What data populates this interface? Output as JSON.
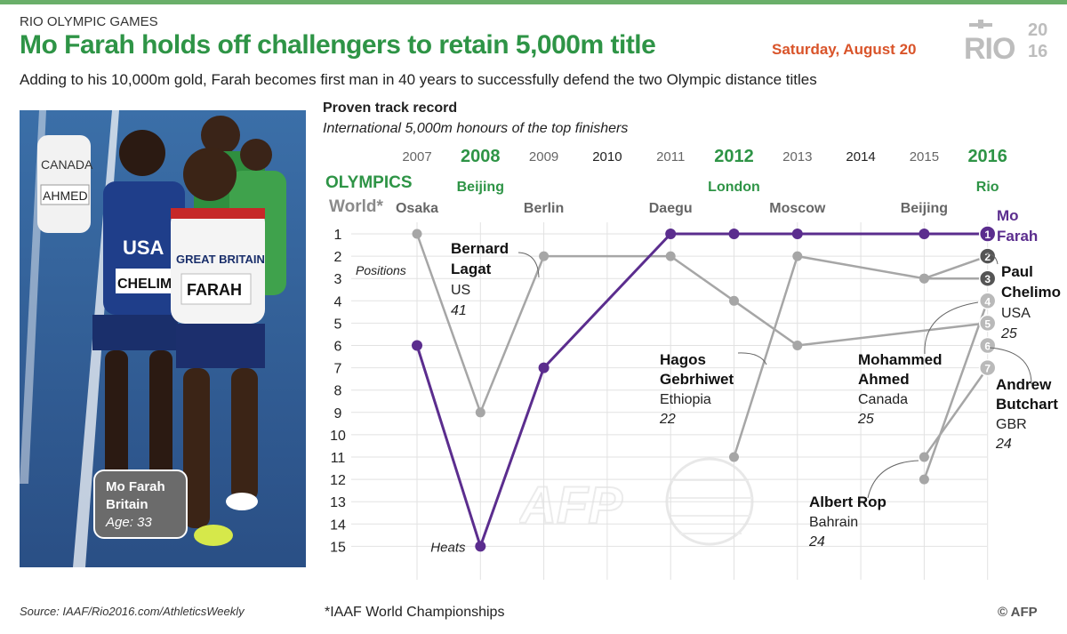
{
  "header": {
    "kicker": "RIO OLYMPIC GAMES",
    "headline": "Mo Farah holds off challengers to retain 5,000m title",
    "date": "Saturday, August 20",
    "logo_text": "RIO",
    "logo_year_top": "20",
    "logo_year_bottom": "16",
    "subhead": "Adding to his 10,000m gold, Farah becomes first man in 40 years to successfully defend the two Olympic distance titles"
  },
  "photo": {
    "caption_name": "Mo Farah",
    "caption_country": "Britain",
    "caption_age": "Age: 33",
    "bibs": [
      "CANADA",
      "AHMED",
      "USA",
      "CHELIM",
      "GREAT BRITAIN",
      "FARAH"
    ]
  },
  "colors": {
    "accent_green": "#2e9446",
    "farah_purple": "#5b2d8e",
    "grey_line": "#a6a6a6",
    "date_red": "#d9542a"
  },
  "footer": {
    "source": "Source: IAAF/Rio2016.com/AthleticsWeekly",
    "footnote": "*IAAF World Championships",
    "credit": "© AFP",
    "watermark": "AFP"
  },
  "chart_data": {
    "type": "line",
    "title": "Proven track record",
    "subtitle": "International 5,000m honours of the top finishers",
    "olympics_label": "OLYMPICS",
    "world_label": "World*",
    "ylabel": "Positions",
    "ylim": [
      1,
      15
    ],
    "years": [
      2007,
      2008,
      2009,
      2010,
      2011,
      2012,
      2013,
      2014,
      2015,
      2016
    ],
    "year_labels": [
      "2007",
      "2008",
      "2009",
      "2010",
      "2011",
      "2012",
      "2013",
      "2014",
      "2015",
      "2016"
    ],
    "olympic_years": [
      "2008",
      "2012",
      "2016"
    ],
    "world_years": [
      "2007",
      "2009",
      "2011",
      "2013",
      "2015"
    ],
    "venues": [
      {
        "year": 2007,
        "name": "Osaka",
        "olympic": false
      },
      {
        "year": 2008,
        "name": "Beijing",
        "olympic": true
      },
      {
        "year": 2009,
        "name": "Berlin",
        "olympic": false
      },
      {
        "year": 2011,
        "name": "Daegu",
        "olympic": false
      },
      {
        "year": 2012,
        "name": "London",
        "olympic": true
      },
      {
        "year": 2013,
        "name": "Moscow",
        "olympic": false
      },
      {
        "year": 2015,
        "name": "Beijing",
        "olympic": false
      },
      {
        "year": 2016,
        "name": "Rio",
        "olympic": true
      }
    ],
    "y_ticks": [
      "1",
      "2",
      "3",
      "4",
      "5",
      "6",
      "7",
      "8",
      "9",
      "10",
      "11",
      "12",
      "13",
      "14",
      "15"
    ],
    "heats_label": "Heats",
    "series": [
      {
        "name": "Mo Farah",
        "color": "#5b2d8e",
        "highlight": true,
        "points": [
          [
            2007,
            6
          ],
          [
            2008,
            15
          ],
          [
            2009,
            7
          ],
          [
            2011,
            1
          ],
          [
            2012,
            1
          ],
          [
            2013,
            1
          ],
          [
            2015,
            1
          ],
          [
            2016,
            1
          ]
        ]
      },
      {
        "name": "Bernard Lagat",
        "country": "US",
        "age": "41",
        "color": "#a6a6a6",
        "points": [
          [
            2007,
            1
          ],
          [
            2008,
            9
          ],
          [
            2009,
            2
          ],
          [
            2011,
            2
          ],
          [
            2012,
            4
          ],
          [
            2013,
            6
          ],
          [
            2016,
            5
          ]
        ]
      },
      {
        "name": "Paul Chelimo",
        "country": "USA",
        "age": "25",
        "color": "#a6a6a6",
        "points": [
          [
            2015,
            3
          ],
          [
            2016,
            2
          ]
        ]
      },
      {
        "name": "Hagos Gebrhiwet",
        "country": "Ethiopia",
        "age": "22",
        "color": "#a6a6a6",
        "points": [
          [
            2012,
            11
          ],
          [
            2013,
            2
          ],
          [
            2015,
            3
          ],
          [
            2016,
            3
          ]
        ]
      },
      {
        "name": "Mohammed Ahmed",
        "country": "Canada",
        "age": "25",
        "color": "#a6a6a6",
        "points": [
          [
            2015,
            12
          ],
          [
            2016,
            4
          ]
        ]
      },
      {
        "name": "Albert Rop",
        "country": "Bahrain",
        "age": "24",
        "color": "#a6a6a6",
        "points": [
          [
            2015,
            11
          ],
          [
            2016,
            7
          ]
        ]
      }
    ],
    "finish_markers": [
      "1",
      "2",
      "3",
      "4",
      "5",
      "6",
      "7"
    ],
    "annotations": [
      {
        "name_lines": [
          "Mo",
          "Farah"
        ],
        "country": "",
        "age": ""
      },
      {
        "name_lines": [
          "Bernard",
          "Lagat"
        ],
        "country": "US",
        "age": "41"
      },
      {
        "name_lines": [
          "Paul",
          "Chelimo"
        ],
        "country": "USA",
        "age": "25"
      },
      {
        "name_lines": [
          "Hagos",
          "Gebrhiwet"
        ],
        "country": "Ethiopia",
        "age": "22"
      },
      {
        "name_lines": [
          "Mohammed",
          "Ahmed"
        ],
        "country": "Canada",
        "age": "25"
      },
      {
        "name_lines": [
          "Andrew",
          "Butchart"
        ],
        "country": "GBR",
        "age": "24"
      },
      {
        "name_lines": [
          "Albert Rop"
        ],
        "country": "Bahrain",
        "age": "24"
      }
    ]
  }
}
